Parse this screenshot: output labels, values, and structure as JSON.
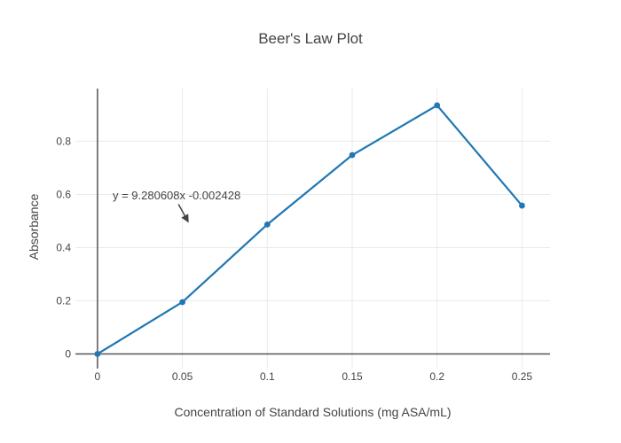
{
  "chart_data": {
    "type": "line",
    "title": "Beer's Law Plot",
    "xlabel": "Concentration of Standard Solutions (mg ASA/mL)",
    "ylabel": "Absorbance",
    "x": [
      0,
      0.05,
      0.1,
      0.15,
      0.2,
      0.25
    ],
    "y": [
      0,
      0.195,
      0.487,
      0.748,
      0.935,
      0.558
    ],
    "xticks": {
      "values": [
        0,
        0.05,
        0.1,
        0.15,
        0.2,
        0.25
      ],
      "labels": [
        "0",
        "0.05",
        "0.1",
        "0.15",
        "0.2",
        "0.25"
      ]
    },
    "yticks": {
      "values": [
        0,
        0.2,
        0.4,
        0.6,
        0.8
      ],
      "labels": [
        "0",
        "0.2",
        "0.4",
        "0.6",
        "0.8"
      ]
    },
    "xlim": [
      -0.013,
      0.2665
    ],
    "ylim": [
      -0.055,
      0.998
    ],
    "grid": true,
    "legend": "none",
    "annotation": {
      "text": "y = 9.280608x -0.002428",
      "x": 0.0466,
      "y": 0.595,
      "arrow": {
        "x1": 0.0477,
        "y1": 0.563,
        "x2": 0.0535,
        "y2": 0.496
      }
    },
    "colors": {
      "line": "#1f77b4",
      "marker": "#1f77b4",
      "grid": "#eaeaea",
      "zeroline": "#555555",
      "text": "#444444",
      "background": "#ffffff"
    }
  }
}
